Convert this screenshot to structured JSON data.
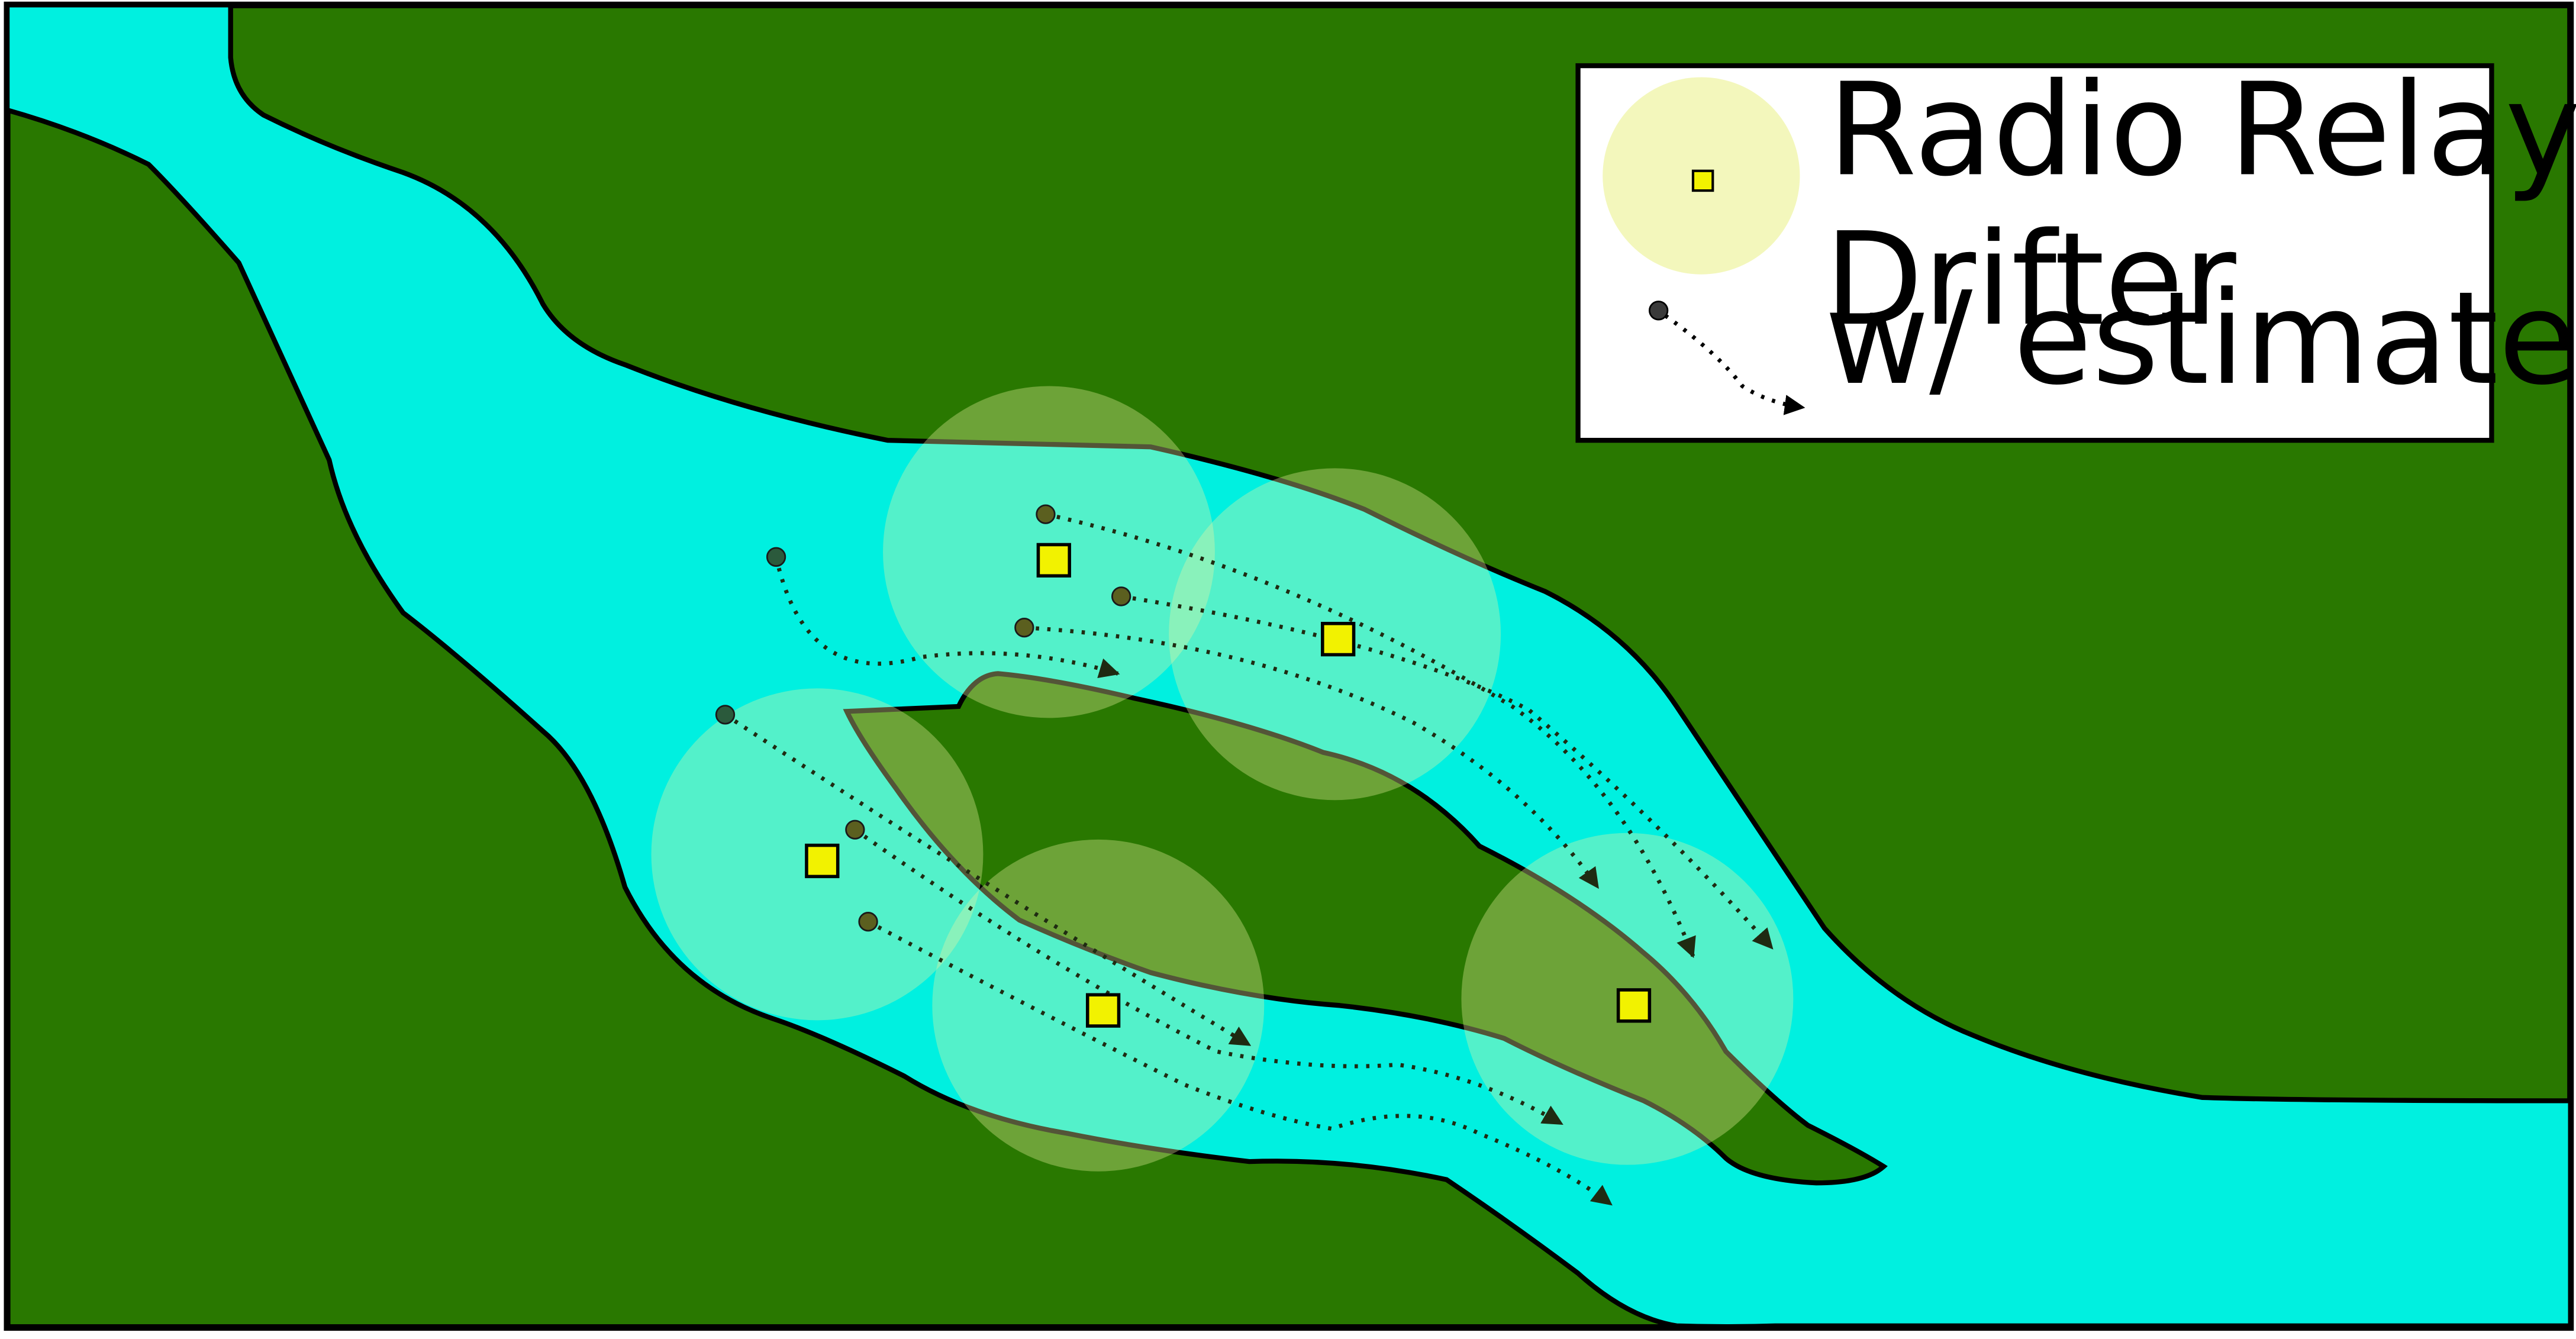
{
  "legend": {
    "relay_label": "Radio Relay",
    "drifter_label_line1": "Drifter",
    "drifter_label_line2": "w/ estimated Trajectory"
  },
  "colors": {
    "land": "#297800",
    "water": "#00f0e0",
    "coverage": "#eef3a0",
    "relay": "#f2f200",
    "drifter_on_water": "#2b5a3c",
    "drifter_in_coverage": "#5b5f1f",
    "trajectory": "#1f2b12",
    "outline": "#000000",
    "legend_bg": "#ffffff"
  },
  "relays": [
    {
      "id": "relay-1"
    },
    {
      "id": "relay-2"
    },
    {
      "id": "relay-3"
    },
    {
      "id": "relay-4"
    },
    {
      "id": "relay-5"
    }
  ],
  "drifters": [
    {
      "id": "drifter-1"
    },
    {
      "id": "drifter-2"
    },
    {
      "id": "drifter-3"
    },
    {
      "id": "drifter-4"
    },
    {
      "id": "drifter-5"
    },
    {
      "id": "drifter-6"
    },
    {
      "id": "drifter-7"
    }
  ]
}
